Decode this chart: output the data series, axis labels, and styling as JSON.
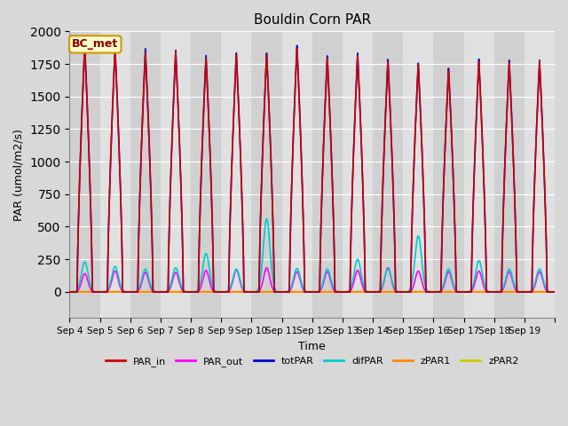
{
  "title": "Bouldin Corn PAR",
  "ylabel": "PAR (umol/m2/s)",
  "xlabel": "Time",
  "ylim": [
    -200,
    2000
  ],
  "annotation_text": "BC_met",
  "annotation_bg": "#ffffcc",
  "annotation_border": "#cc9900",
  "annotation_text_color": "#8b0000",
  "background_color": "#d8d8d8",
  "plot_bg": "#d8d8d8",
  "n_days": 16,
  "start_day": 4,
  "peak_values_PAR_in": [
    1880,
    1870,
    1840,
    1850,
    1800,
    1830,
    1825,
    1880,
    1800,
    1820,
    1770,
    1750,
    1700,
    1770,
    1760,
    1770
  ],
  "peak_values_totPAR": [
    1900,
    1880,
    1870,
    1860,
    1820,
    1840,
    1840,
    1900,
    1820,
    1840,
    1790,
    1760,
    1720,
    1790,
    1780,
    1780
  ],
  "peak_values_difPAR": [
    230,
    195,
    175,
    185,
    295,
    175,
    560,
    180,
    175,
    250,
    175,
    430,
    175,
    240,
    175,
    175
  ],
  "peak_values_PAR_out": [
    140,
    160,
    150,
    150,
    165,
    170,
    185,
    155,
    155,
    165,
    185,
    160,
    155,
    160,
    155,
    155
  ],
  "colors": {
    "PAR_in": "#cc0000",
    "PAR_out": "#ff00ff",
    "totPAR": "#0000cc",
    "difPAR": "#00cccc",
    "zPAR1": "#ff8800",
    "zPAR2": "#cccc00"
  },
  "linewidths": {
    "PAR_in": 1.2,
    "PAR_out": 1.2,
    "totPAR": 1.2,
    "difPAR": 1.2,
    "zPAR1": 1.5,
    "zPAR2": 1.5
  },
  "tick_labels": [
    "Sep 4",
    "Sep 5",
    "Sep 6",
    "Sep 7",
    "Sep 8",
    "Sep 9",
    "Sep 10",
    "Sep 11",
    "Sep 12",
    "Sep 13",
    "Sep 14",
    "Sep 15",
    "Sep 16",
    "Sep 17",
    "Sep 18",
    "Sep 19"
  ],
  "band_colors": [
    "#d0d0d0",
    "#e0e0e0"
  ]
}
